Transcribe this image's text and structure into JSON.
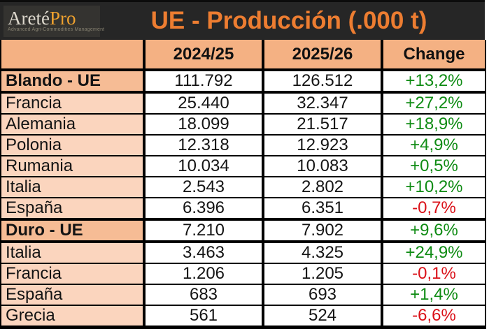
{
  "logo": {
    "brand_main": "Areté",
    "brand_accent": "Pro",
    "tagline": "Advanced Agri-Commodities Management"
  },
  "header": {
    "title": "UE - Producción (.000 t)"
  },
  "colors": {
    "band_background": "#262626",
    "title_orange": "#ed7d31",
    "header_row_peach": "#f4b183",
    "section_label_peach": "#f6bc95",
    "country_label_peach": "#fbd5be",
    "positive_green": "#0e8b13",
    "negative_red": "#da1018",
    "logo_gold": "#f0a22e"
  },
  "chart_data": {
    "type": "table",
    "title": "UE - Producción (.000 t)",
    "columns": [
      "",
      "2024/25",
      "2025/26",
      "Change"
    ],
    "rows": [
      {
        "label": "Blando - UE",
        "v2024_25": "111.792",
        "v2025_26": "126.512",
        "change": "+13,2%",
        "type": "section",
        "trend": "up"
      },
      {
        "label": "Francia",
        "v2024_25": "25.440",
        "v2025_26": "32.347",
        "change": "+27,2%",
        "type": "country",
        "trend": "up"
      },
      {
        "label": "Alemania",
        "v2024_25": "18.099",
        "v2025_26": "21.517",
        "change": "+18,9%",
        "type": "country",
        "trend": "up"
      },
      {
        "label": "Polonia",
        "v2024_25": "12.318",
        "v2025_26": "12.923",
        "change": "+4,9%",
        "type": "country",
        "trend": "up"
      },
      {
        "label": "Rumania",
        "v2024_25": "10.034",
        "v2025_26": "10.083",
        "change": "+0,5%",
        "type": "country",
        "trend": "up"
      },
      {
        "label": "Italia",
        "v2024_25": "2.543",
        "v2025_26": "2.802",
        "change": "+10,2%",
        "type": "country",
        "trend": "up"
      },
      {
        "label": "España",
        "v2024_25": "6.396",
        "v2025_26": "6.351",
        "change": "-0,7%",
        "type": "country",
        "trend": "down"
      },
      {
        "label": "Duro - UE",
        "v2024_25": "7.210",
        "v2025_26": "7.902",
        "change": "+9,6%",
        "type": "section",
        "trend": "up"
      },
      {
        "label": "Italia",
        "v2024_25": "3.463",
        "v2025_26": "4.325",
        "change": "+24,9%",
        "type": "country",
        "trend": "up"
      },
      {
        "label": "Francia",
        "v2024_25": "1.206",
        "v2025_26": "1.205",
        "change": "-0,1%",
        "type": "country",
        "trend": "down"
      },
      {
        "label": "España",
        "v2024_25": "683",
        "v2025_26": "693",
        "change": "+1,4%",
        "type": "country",
        "trend": "up"
      },
      {
        "label": "Grecia",
        "v2024_25": "561",
        "v2025_26": "524",
        "change": "-6,6%",
        "type": "country",
        "trend": "down"
      }
    ]
  }
}
